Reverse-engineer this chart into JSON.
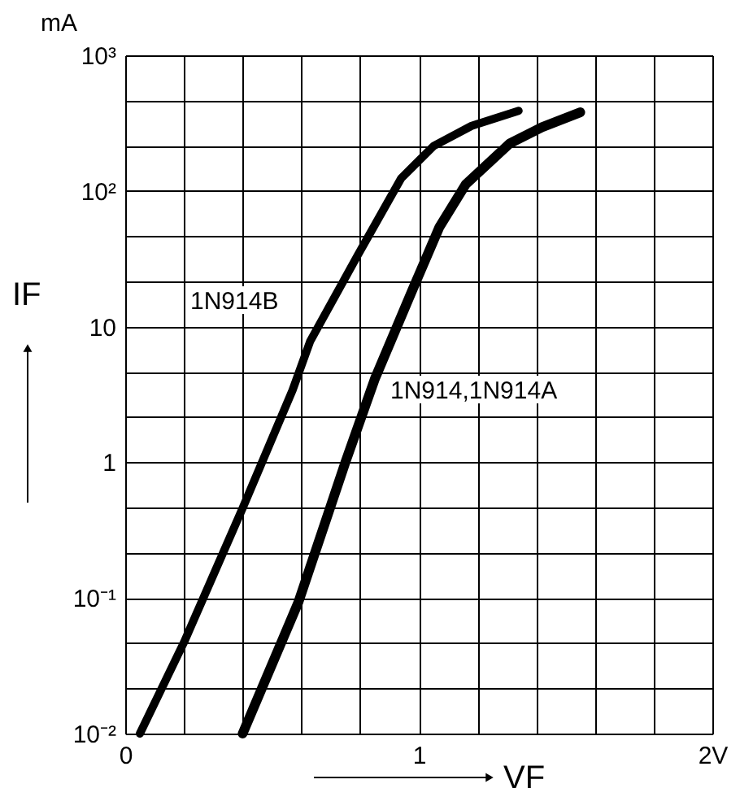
{
  "chart_data": {
    "type": "line",
    "xlabel": "VF",
    "ylabel": "IF",
    "log": "y",
    "grid": true,
    "marker": "none",
    "line_style": "solid",
    "xlim": [
      0,
      2
    ],
    "ylim": [
      0.01,
      1000
    ],
    "xticks": [
      0,
      {
        "value": 0.2,
        "label": null
      },
      {
        "value": 0.4,
        "label": null
      },
      {
        "value": 0.6,
        "label": null
      },
      {
        "value": 0.8,
        "label": null
      },
      1,
      {
        "value": 1.2,
        "label": null
      },
      {
        "value": 1.4,
        "label": null
      },
      {
        "value": 1.6,
        "label": null
      },
      {
        "value": 1.8,
        "label": null
      },
      {
        "value": 2,
        "label": "2V"
      }
    ],
    "yticks": [
      {
        "value": 0.01,
        "label": "10⁻²"
      },
      {
        "value": 0.0215,
        "label": null
      },
      {
        "value": 0.0464,
        "label": null
      },
      {
        "value": 0.1,
        "label": "10⁻¹"
      },
      {
        "value": 0.215,
        "label": null
      },
      {
        "value": 0.464,
        "label": null
      },
      1,
      {
        "value": 2.15,
        "label": null
      },
      {
        "value": 4.64,
        "label": null
      },
      10,
      {
        "value": 21.5,
        "label": null
      },
      {
        "value": 46.4,
        "label": null
      },
      {
        "value": 100,
        "label": "10²"
      },
      {
        "value": 215,
        "label": null
      },
      {
        "value": 464,
        "label": null
      },
      {
        "value": 1000,
        "label": "10³"
      }
    ],
    "series": [
      {
        "color": "#000000",
        "x": [
          0.05,
          0.2,
          0.4,
          0.57,
          0.63,
          0.79,
          0.94,
          1.05,
          1.18,
          1.34
        ],
        "values": [
          0.01,
          0.047,
          0.46,
          3.4,
          7.8,
          33,
          124,
          214,
          302,
          390
        ]
      },
      {
        "color": "#000000",
        "x": [
          0.4,
          0.59,
          0.75,
          0.85,
          0.98,
          1.07,
          1.16,
          1.31,
          1.42,
          1.55
        ],
        "values": [
          0.01,
          0.093,
          1.0,
          4.1,
          19,
          54,
          112,
          224,
          295,
          380
        ]
      }
    ],
    "annotations": [
      "mA",
      "1N914B",
      "1N914,1N914A"
    ]
  }
}
